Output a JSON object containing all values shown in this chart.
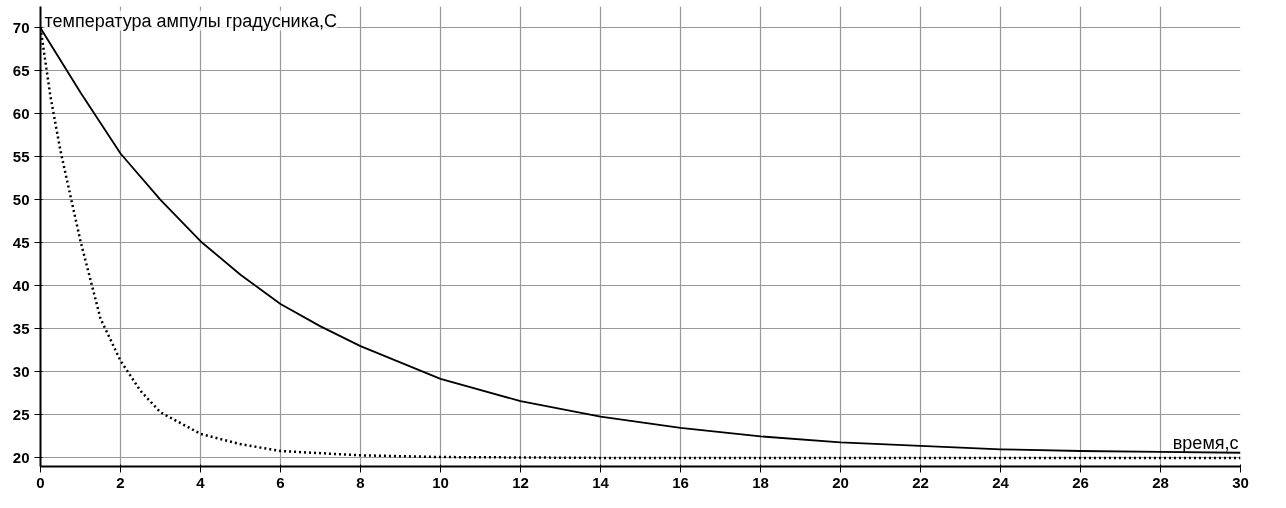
{
  "chart_data": {
    "type": "line",
    "ylabel": "температура ампулы градусника,С",
    "xlabel": "время,с",
    "series": [
      {
        "color": "#000000",
        "line_style": "solid",
        "x": [
          0,
          1,
          2,
          3,
          4,
          5,
          6,
          7,
          8,
          10,
          12,
          14,
          16,
          18,
          20,
          22,
          24,
          26,
          28,
          30
        ],
        "values": [
          70,
          62.5,
          55.4,
          50,
          45.2,
          41.3,
          37.9,
          35.3,
          33,
          29.2,
          26.6,
          24.8,
          23.5,
          22.5,
          21.8,
          21.4,
          21,
          20.8,
          20.7,
          20.6
        ]
      },
      {
        "color": "#000000",
        "line_style": "dotted",
        "x": [
          0,
          0.25,
          0.5,
          1,
          1.5,
          2,
          2.5,
          3,
          4,
          5,
          6,
          8,
          10,
          14,
          20,
          30
        ],
        "values": [
          70,
          62,
          55.7,
          45.2,
          36.2,
          31.3,
          27.8,
          25.3,
          22.8,
          21.6,
          20.8,
          20.3,
          20.1,
          20,
          20,
          20
        ]
      }
    ],
    "xlim": [
      0,
      30
    ],
    "xticks": [
      0,
      2,
      4,
      6,
      8,
      10,
      12,
      14,
      16,
      18,
      20,
      22,
      24,
      26,
      28,
      30
    ],
    "ylim": [
      19,
      72.5
    ],
    "yticks": [
      20,
      25,
      30,
      35,
      40,
      45,
      50,
      55,
      60,
      65,
      70
    ],
    "grid": true
  }
}
